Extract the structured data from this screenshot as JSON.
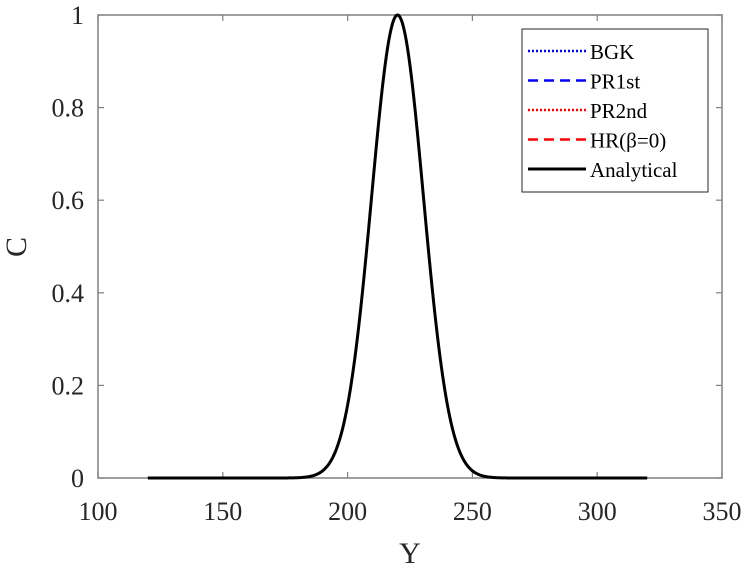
{
  "chart_data": {
    "type": "line",
    "title": "",
    "xlabel": "Y",
    "ylabel": "C",
    "xlim": [
      100,
      350
    ],
    "ylim": [
      0,
      1
    ],
    "xticks": [
      100,
      150,
      200,
      250,
      300,
      350
    ],
    "yticks": [
      0,
      0.2,
      0.4,
      0.6,
      0.8,
      1
    ],
    "xtick_labels": [
      "100",
      "150",
      "200",
      "250",
      "300",
      "350"
    ],
    "ytick_labels": [
      "0",
      "0.2",
      "0.4",
      "0.6",
      "0.8",
      "1"
    ],
    "grid": false,
    "legend_position": "upper right",
    "x_range_of_data": [
      120,
      320
    ],
    "profile": {
      "shape": "gaussian",
      "center": 220,
      "sigma": 10.4,
      "peak": 1.0
    },
    "x": [
      120,
      170,
      180,
      190,
      195,
      200,
      205,
      210,
      215,
      220,
      225,
      230,
      235,
      240,
      245,
      250,
      260,
      270,
      320
    ],
    "series": [
      {
        "name": "BGK",
        "color": "#0000ff",
        "style": "dotted",
        "values": [
          0,
          0.0,
          0.0006,
          0.0156,
          0.0558,
          0.1572,
          0.3537,
          0.6302,
          0.8907,
          1.0,
          0.8907,
          0.6302,
          0.3537,
          0.1572,
          0.0558,
          0.0156,
          0.0006,
          0.0,
          0
        ]
      },
      {
        "name": "PR1st",
        "color": "#0000ff",
        "style": "dashed",
        "values": [
          0,
          0.0,
          0.0006,
          0.0156,
          0.0558,
          0.1572,
          0.3537,
          0.6302,
          0.8907,
          1.0,
          0.8907,
          0.6302,
          0.3537,
          0.1572,
          0.0558,
          0.0156,
          0.0006,
          0.0,
          0
        ]
      },
      {
        "name": "PR2nd",
        "color": "#ff0000",
        "style": "dotted",
        "values": [
          0,
          0.0,
          0.0006,
          0.0156,
          0.0558,
          0.1572,
          0.3537,
          0.6302,
          0.8907,
          1.0,
          0.8907,
          0.6302,
          0.3537,
          0.1572,
          0.0558,
          0.0156,
          0.0006,
          0.0,
          0
        ]
      },
      {
        "name": "HR(β=0)",
        "color": "#ff0000",
        "style": "dashed",
        "values": [
          0,
          0.0,
          0.0006,
          0.0156,
          0.0558,
          0.1572,
          0.3537,
          0.6302,
          0.8907,
          1.0,
          0.8907,
          0.6302,
          0.3537,
          0.1572,
          0.0558,
          0.0156,
          0.0006,
          0.0,
          0
        ]
      },
      {
        "name": "Analytical",
        "color": "#000000",
        "style": "solid",
        "values": [
          0,
          0.0,
          0.0006,
          0.0156,
          0.0558,
          0.1572,
          0.3537,
          0.6302,
          0.8907,
          1.0,
          0.8907,
          0.6302,
          0.3537,
          0.1572,
          0.0558,
          0.0156,
          0.0006,
          0.0,
          0
        ]
      }
    ]
  },
  "legend": {
    "items": [
      {
        "label": "BGK",
        "color": "#0000ff",
        "style": "dotted"
      },
      {
        "label": "PR1st",
        "color": "#0000ff",
        "style": "dashed"
      },
      {
        "label": "PR2nd",
        "color": "#ff0000",
        "style": "dotted"
      },
      {
        "label": "HR(β=0)",
        "color": "#ff0000",
        "style": "dashed"
      },
      {
        "label": "Analytical",
        "color": "#000000",
        "style": "solid"
      }
    ]
  },
  "colors": {
    "axis": "#808080",
    "text": "#262626"
  }
}
